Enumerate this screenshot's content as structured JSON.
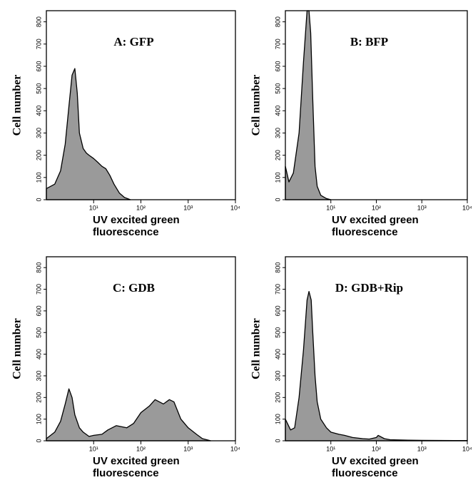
{
  "chart_data": [
    {
      "type": "area",
      "title": "A: GFP",
      "xlabel": "UV excited green fluorescence",
      "ylabel": "Cell number",
      "log_x": true,
      "color": "#9a9a9a",
      "x": [
        1,
        1.5,
        2,
        2.5,
        3,
        3.5,
        4,
        4.5,
        5,
        6,
        7,
        8,
        10,
        12,
        15,
        18,
        22,
        27,
        35,
        45,
        60
      ],
      "values": [
        50,
        70,
        130,
        250,
        420,
        560,
        590,
        480,
        300,
        230,
        210,
        200,
        185,
        170,
        150,
        140,
        110,
        70,
        30,
        10,
        0
      ],
      "xlim": [
        1,
        10000
      ],
      "xticks": [
        {
          "value": 10,
          "label": "10¹"
        },
        {
          "value": 100,
          "label": "10²"
        },
        {
          "value": 1000,
          "label": "10³"
        },
        {
          "value": 10000,
          "label": "10⁴"
        }
      ],
      "ylim": [
        0,
        850
      ],
      "yticks": [
        0,
        100,
        200,
        300,
        400,
        500,
        600,
        700,
        800
      ]
    },
    {
      "type": "area",
      "title": "B: BFP",
      "xlabel": "UV excited green fluorescence",
      "ylabel": "Cell number",
      "log_x": true,
      "color": "#9a9a9a",
      "x": [
        1,
        1.2,
        1.5,
        2,
        2.5,
        3,
        3.3,
        3.6,
        4,
        4.5,
        5,
        6,
        8,
        10
      ],
      "values": [
        150,
        80,
        120,
        300,
        620,
        850,
        850,
        750,
        450,
        150,
        60,
        20,
        5,
        0
      ],
      "xlim": [
        1,
        10000
      ],
      "xticks": [
        {
          "value": 10,
          "label": "10¹"
        },
        {
          "value": 100,
          "label": "10²"
        },
        {
          "value": 1000,
          "label": "10³"
        },
        {
          "value": 10000,
          "label": "10⁴"
        }
      ],
      "ylim": [
        0,
        850
      ],
      "yticks": [
        0,
        100,
        200,
        300,
        400,
        500,
        600,
        700,
        800
      ]
    },
    {
      "type": "area",
      "title": "C: GDB",
      "xlabel": "UV excited green fluorescence",
      "ylabel": "Cell number",
      "log_x": true,
      "color": "#9a9a9a",
      "x": [
        1,
        1.5,
        2,
        2.5,
        3,
        3.5,
        4,
        5,
        6,
        8,
        10,
        15,
        20,
        30,
        50,
        70,
        100,
        150,
        200,
        300,
        400,
        500,
        700,
        1000,
        1500,
        2000,
        3000
      ],
      "values": [
        10,
        40,
        90,
        170,
        240,
        200,
        120,
        60,
        40,
        20,
        25,
        30,
        50,
        70,
        60,
        80,
        130,
        160,
        190,
        170,
        190,
        180,
        100,
        60,
        30,
        10,
        0
      ],
      "xlim": [
        1,
        10000
      ],
      "xticks": [
        {
          "value": 10,
          "label": "10¹"
        },
        {
          "value": 100,
          "label": "10²"
        },
        {
          "value": 1000,
          "label": "10³"
        },
        {
          "value": 10000,
          "label": "10⁴"
        }
      ],
      "ylim": [
        0,
        850
      ],
      "yticks": [
        0,
        100,
        200,
        300,
        400,
        500,
        600,
        700,
        800
      ]
    },
    {
      "type": "area",
      "title": "D: GDB+Rip",
      "xlabel": "UV excited green fluorescence",
      "ylabel": "Cell number",
      "log_x": true,
      "color": "#9a9a9a",
      "x": [
        1,
        1.3,
        1.6,
        2,
        2.5,
        3,
        3.3,
        3.7,
        4,
        4.5,
        5,
        6,
        8,
        10,
        15,
        20,
        30,
        50,
        70,
        100,
        110,
        150,
        200,
        500,
        1000,
        10000
      ],
      "values": [
        100,
        50,
        60,
        200,
        420,
        650,
        690,
        650,
        500,
        300,
        180,
        100,
        60,
        40,
        30,
        25,
        15,
        10,
        8,
        15,
        25,
        10,
        5,
        3,
        2,
        1
      ],
      "xlim": [
        1,
        10000
      ],
      "xticks": [
        {
          "value": 10,
          "label": "10¹"
        },
        {
          "value": 100,
          "label": "10²"
        },
        {
          "value": 1000,
          "label": "10³"
        },
        {
          "value": 10000,
          "label": "10⁴"
        }
      ],
      "ylim": [
        0,
        850
      ],
      "yticks": [
        0,
        100,
        200,
        300,
        400,
        500,
        600,
        700,
        800
      ]
    }
  ]
}
